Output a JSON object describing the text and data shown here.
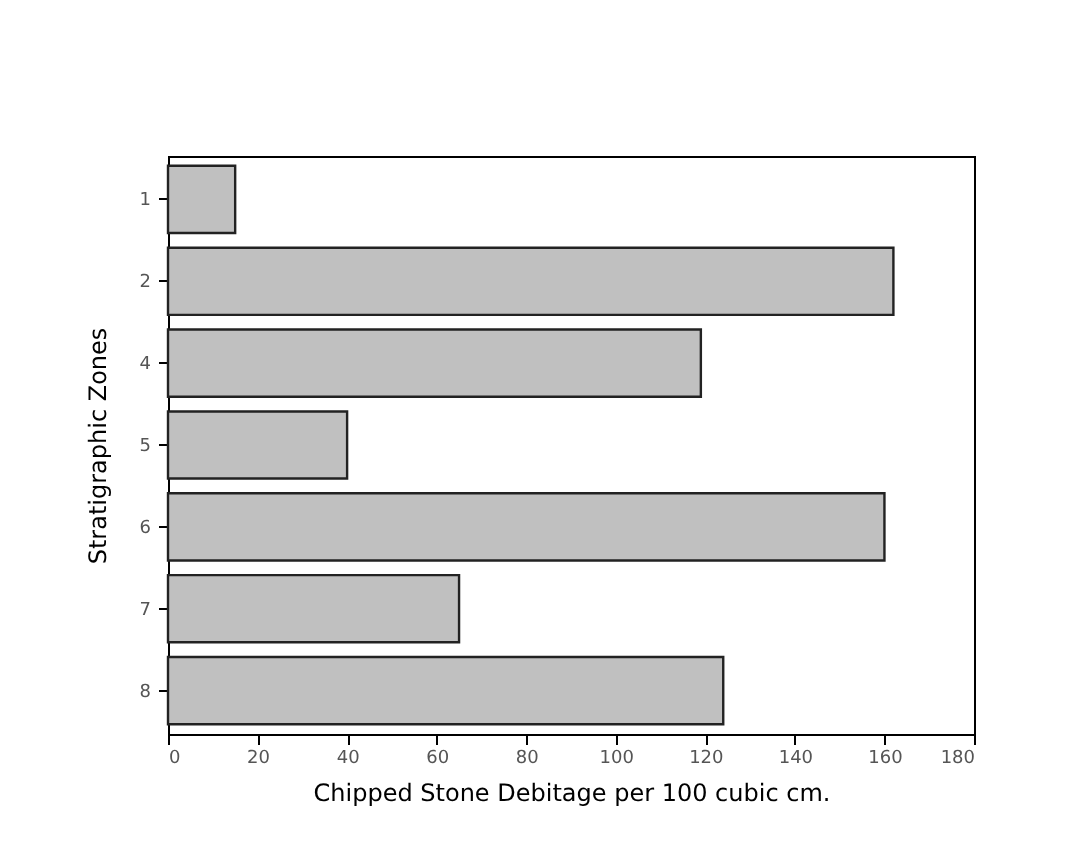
{
  "chart_data": {
    "type": "bar",
    "orientation": "horizontal",
    "xlabel": "Chipped Stone Debitage per 100 cubic cm.",
    "ylabel": "Stratigraphic Zones",
    "categories": [
      "1",
      "2",
      "4",
      "5",
      "6",
      "7",
      "8"
    ],
    "values": [
      15,
      162,
      119,
      40,
      160,
      65,
      124
    ],
    "color": "#c0c0c0",
    "xlim": [
      0,
      180
    ],
    "xticks": [
      0,
      20,
      40,
      60,
      80,
      100,
      120,
      140,
      160,
      180
    ],
    "grid": false
  }
}
